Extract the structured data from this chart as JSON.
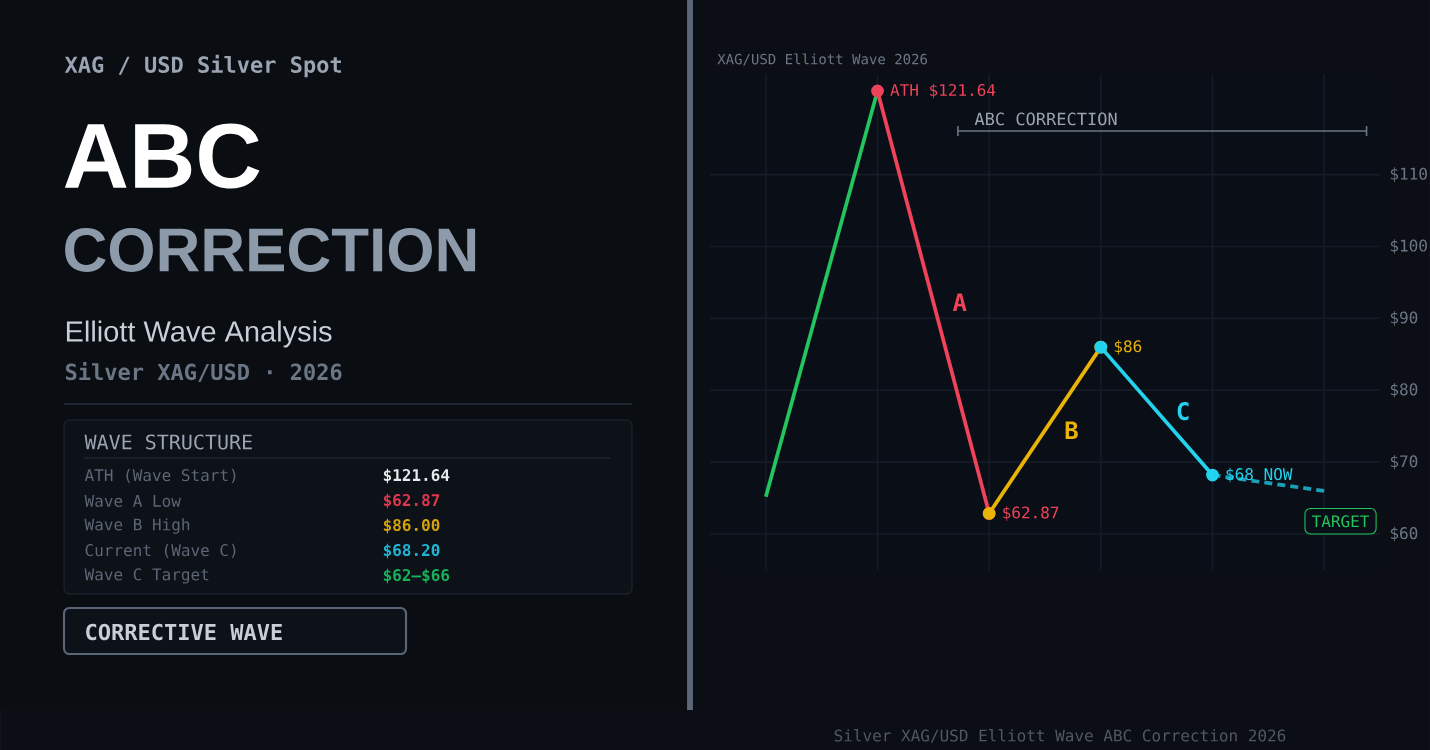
{
  "chart_data": [
    {
      "type": "other",
      "title": "ABC",
      "subtitle": "CORRECTION",
      "annotations": [
        "XAG / USD  Silver Spot",
        "Elliott Wave Analysis",
        "Silver  XAG/USD  ·  2026",
        "WAVE STRUCTURE",
        "ATH  (Wave Start)",
        "$121.64",
        "Wave A Low",
        "$62.87",
        "Wave B High",
        "$86.00",
        "Current  (Wave C)",
        "$68.20",
        "Wave C Target",
        "$62–$66",
        "CORRECTIVE WAVE"
      ]
    },
    {
      "type": "line",
      "title": "XAG/USD  Elliott Wave  2026",
      "categories": [
        null,
        null,
        null,
        null,
        null,
        null
      ],
      "series": [
        {
          "color": "#22c55e",
          "marker": "none",
          "values": [
            65.2,
            121.64,
            null,
            null,
            null,
            null
          ]
        },
        {
          "name": "A",
          "color": "#f0435a",
          "marker": "circle",
          "values": [
            null,
            121.64,
            62.87,
            null,
            null,
            null
          ],
          "value_labels": [
            null,
            "ATH $121.64",
            "$62.87",
            null,
            null,
            null
          ]
        },
        {
          "name": "B",
          "color": "#eab308",
          "marker": "circle",
          "values": [
            null,
            null,
            62.87,
            86,
            null,
            null
          ],
          "value_labels": [
            null,
            null,
            null,
            "$86",
            null,
            null
          ]
        },
        {
          "name": "C",
          "color": "#22d3ee",
          "marker": "circle",
          "values": [
            null,
            null,
            null,
            86,
            68.2,
            null
          ],
          "value_labels": [
            null,
            null,
            null,
            null,
            "$68 NOW",
            null
          ]
        },
        {
          "color": "#1b9fb8",
          "line_style": "dashed",
          "marker": "none",
          "values": [
            null,
            null,
            null,
            null,
            68.2,
            66
          ]
        }
      ],
      "ylim": [
        55,
        124
      ],
      "yticks": [
        {
          "value": 60,
          "label": "$60"
        },
        {
          "value": 70,
          "label": "$70"
        },
        {
          "value": 80,
          "label": "$80"
        },
        {
          "value": 90,
          "label": "$90"
        },
        {
          "value": 100,
          "label": "$100"
        },
        {
          "value": 110,
          "label": "$110"
        }
      ],
      "grid": true,
      "annotations": [
        "ABC CORRECTION",
        "TARGET",
        "Silver XAG/USD  Elliott Wave ABC Correction  2026"
      ]
    }
  ]
}
